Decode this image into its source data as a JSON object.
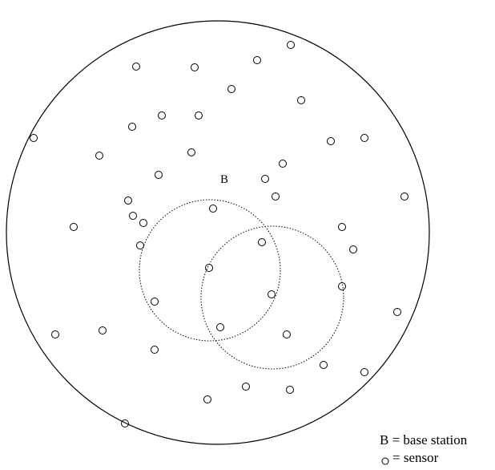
{
  "diagram": {
    "base_station_label": "B",
    "legend": {
      "base_station": "B = base station",
      "sensor": "= sensor"
    },
    "sensor_count": 48
  }
}
